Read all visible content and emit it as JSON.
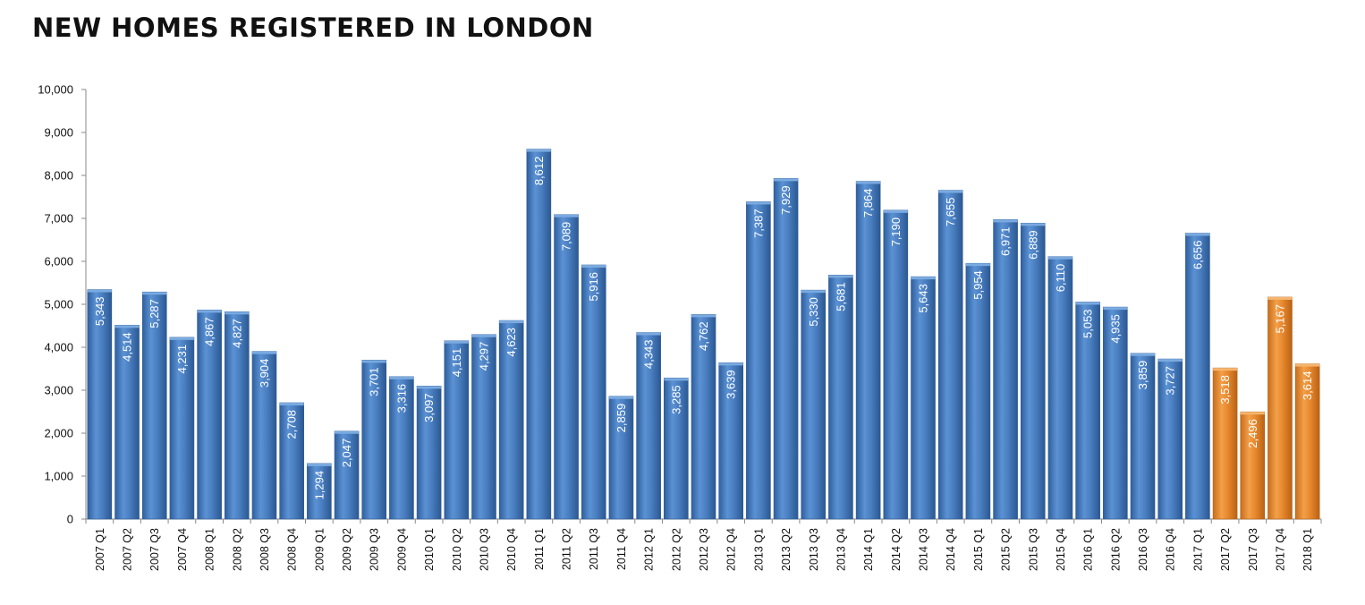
{
  "title": "NEW HOMES REGISTERED IN LONDON",
  "chart_data": {
    "type": "bar",
    "title": "NEW HOMES REGISTERED IN LONDON",
    "xlabel": "",
    "ylabel": "",
    "ylim": [
      0,
      10000
    ],
    "yticks": [
      "0",
      "1,000",
      "2,000",
      "3,000",
      "4,000",
      "5,000",
      "6,000",
      "7,000",
      "8,000",
      "9,000",
      "10,000"
    ],
    "grid": false,
    "categories": [
      "2007 Q1",
      "2007 Q2",
      "2007 Q3",
      "2007 Q4",
      "2008 Q1",
      "2008 Q2",
      "2008 Q3",
      "2008 Q4",
      "2009 Q1",
      "2009 Q2",
      "2009 Q3",
      "2009 Q4",
      "2010 Q1",
      "2010 Q2",
      "2010 Q3",
      "2010 Q4",
      "2011 Q1",
      "2011 Q2",
      "2011 Q3",
      "2011 Q4",
      "2012 Q1",
      "2012 Q2",
      "2012 Q3",
      "2012 Q4",
      "2013 Q1",
      "2013 Q2",
      "2013 Q3",
      "2013 Q4",
      "2014 Q1",
      "2014 Q2",
      "2014 Q3",
      "2014 Q4",
      "2015 Q1",
      "2015 Q2",
      "2015 Q3",
      "2015 Q4",
      "2016 Q1",
      "2016 Q2",
      "2016 Q3",
      "2016 Q4",
      "2017 Q1",
      "2017 Q2",
      "2017 Q3",
      "2017 Q4",
      "2018 Q1"
    ],
    "values": [
      5343,
      4514,
      5287,
      4231,
      4867,
      4827,
      3904,
      2708,
      1294,
      2047,
      3701,
      3316,
      3097,
      4151,
      4297,
      4623,
      8612,
      7089,
      5916,
      2859,
      4343,
      3285,
      4762,
      3639,
      7387,
      7929,
      5330,
      5681,
      7864,
      7190,
      5643,
      7655,
      5954,
      6971,
      6889,
      6110,
      5053,
      4935,
      3859,
      3727,
      6656,
      3518,
      2496,
      5167,
      3614
    ],
    "labels": [
      "5,343",
      "4,514",
      "5,287",
      "4,231",
      "4,867",
      "4,827",
      "3,904",
      "2,708",
      "1,294",
      "2,047",
      "3,701",
      "3,316",
      "3,097",
      "4,151",
      "4,297",
      "4,623",
      "8,612",
      "7,089",
      "5,916",
      "2,859",
      "4,343",
      "3,285",
      "4,762",
      "3,639",
      "7,387",
      "7,929",
      "5,330",
      "5,681",
      "7,864",
      "7,190",
      "5,643",
      "7,655",
      "5,954",
      "6,971",
      "6,889",
      "6,110",
      "5,053",
      "4,935",
      "3,859",
      "3,727",
      "6,656",
      "3,518",
      "2,496",
      "5,167",
      "3,614"
    ],
    "colors": {
      "default": "#4a7fc1",
      "highlight": "#e8892e"
    },
    "highlight_categories": [
      "2017 Q2",
      "2017 Q3",
      "2017 Q4",
      "2018 Q1"
    ]
  }
}
